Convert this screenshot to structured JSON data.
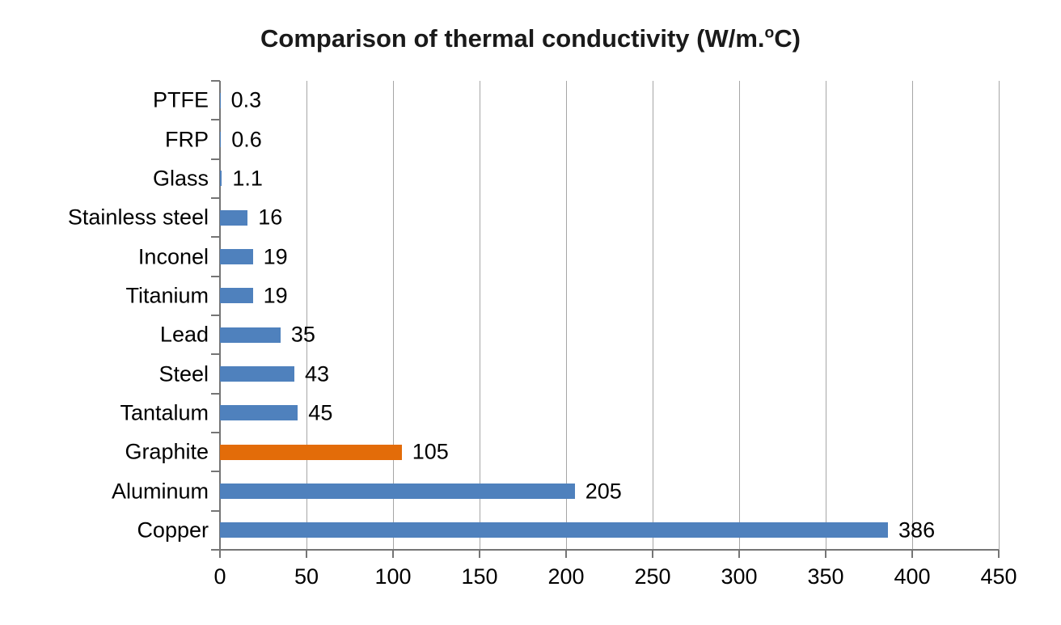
{
  "chart_data": {
    "type": "bar",
    "orientation": "horizontal",
    "title": "Comparison of thermal conductivity (W/m.ºC)",
    "title_parts": {
      "prefix": "Comparison of thermal conductivity (W/m.",
      "superscript": "o",
      "suffix": "C)"
    },
    "categories": [
      "PTFE",
      "FRP",
      "Glass",
      "Stainless steel",
      "Inconel",
      "Titanium",
      "Lead",
      "Steel",
      "Tantalum",
      "Graphite",
      "Aluminum",
      "Copper"
    ],
    "values": [
      0.3,
      0.6,
      1.1,
      16,
      19,
      19,
      35,
      43,
      45,
      105,
      205,
      386
    ],
    "value_labels": [
      "0.3",
      "0.6",
      "1.1",
      "16",
      "19",
      "19",
      "35",
      "43",
      "45",
      "105",
      "205",
      "386"
    ],
    "xlim": [
      0,
      450
    ],
    "x_ticks": [
      0,
      50,
      100,
      150,
      200,
      250,
      300,
      350,
      400,
      450
    ],
    "grid": true,
    "legend": "none",
    "highlight_category": "Graphite",
    "colors": {
      "bar_default": "#4F81BD",
      "bar_highlight": "#E36C09",
      "gridline": "#A6A6A6",
      "axis": "#757575",
      "text": "#000000",
      "title_text": "#1A1A1A"
    }
  }
}
